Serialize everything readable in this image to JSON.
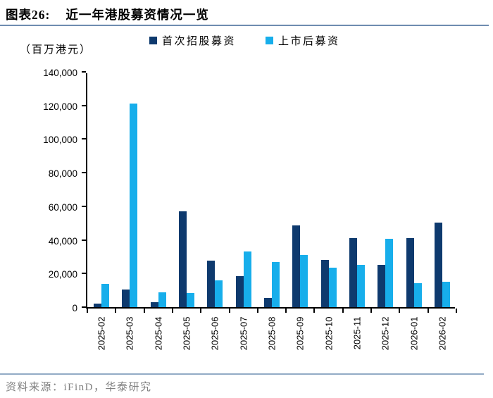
{
  "header": {
    "figure_label": "图表26:",
    "title": "近一年港股募资情况一览"
  },
  "chart": {
    "unit_label": "（百万港元）"
  },
  "chart_data": {
    "type": "bar",
    "title": "近一年港股募资情况一览",
    "unit": "百万港元",
    "categories": [
      "2025-02",
      "2025-03",
      "2025-04",
      "2025-05",
      "2025-06",
      "2025-07",
      "2025-08",
      "2025-09",
      "2025-10",
      "2025-11",
      "2025-12",
      "2026-01",
      "2026-02"
    ],
    "series": [
      {
        "name": "首次招股募资",
        "color": "#0e3a6e",
        "values": [
          2000,
          10500,
          3000,
          57000,
          27500,
          18500,
          5500,
          48700,
          28000,
          41200,
          25200,
          41200,
          50500
        ]
      },
      {
        "name": "上市后募资",
        "color": "#17aeeb",
        "values": [
          13700,
          121000,
          8700,
          8500,
          15800,
          33000,
          26800,
          31000,
          23500,
          25100,
          40500,
          14400,
          15200
        ]
      }
    ],
    "ylim": [
      0,
      140000
    ],
    "ytick_interval": 20000,
    "ytick_labels": [
      "0",
      "20,000",
      "40,000",
      "60,000",
      "80,000",
      "100,000",
      "120,000",
      "140,000"
    ],
    "legend_position": "top",
    "grid": false
  },
  "footer": {
    "source": "资料来源：iFinD，华泰研究"
  }
}
